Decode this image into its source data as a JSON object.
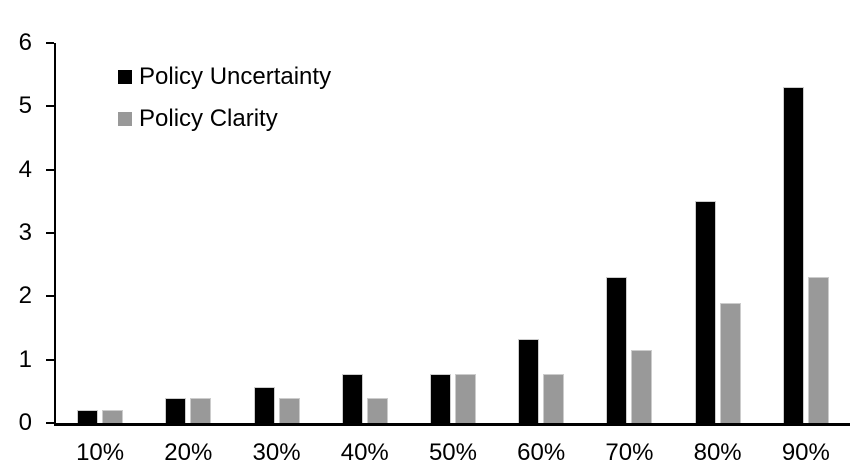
{
  "chart_data": {
    "type": "bar",
    "title": "",
    "xlabel": "",
    "ylabel": "",
    "categories": [
      "10%",
      "20%",
      "30%",
      "40%",
      "50%",
      "60%",
      "70%",
      "80%",
      "90%"
    ],
    "series": [
      {
        "name": "Policy Uncertainty",
        "color": "#000000",
        "values": [
          0.2,
          0.4,
          0.57,
          0.77,
          0.78,
          1.33,
          2.3,
          3.5,
          5.3
        ]
      },
      {
        "name": "Policy Clarity",
        "color": "#999999",
        "values": [
          0.2,
          0.4,
          0.4,
          0.4,
          0.77,
          0.77,
          1.15,
          1.9,
          2.3
        ]
      }
    ],
    "ylim": [
      0,
      6
    ],
    "yticks": [
      0,
      1,
      2,
      3,
      4,
      5,
      6
    ],
    "grid": false,
    "legend_position": "top-left",
    "axis_color": "#000000",
    "background_color": "#ffffff"
  }
}
